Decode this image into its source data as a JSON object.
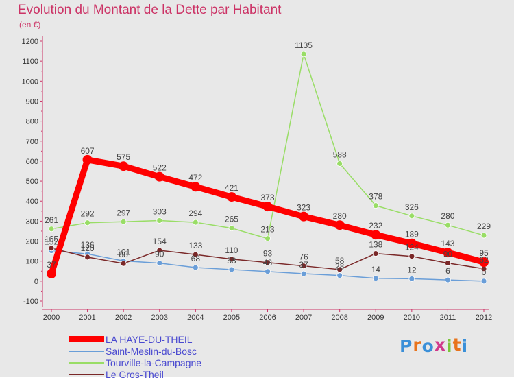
{
  "title": "Evolution du Montant de la Dette par Habitant",
  "subtitle": "(en €)",
  "logo": {
    "letters": [
      "P",
      "r",
      "o",
      "x",
      "i",
      "t",
      "i"
    ],
    "colors": [
      "#3a8fd8",
      "#e8731c",
      "#3a8fd8",
      "#d03a8c",
      "#7cc43a",
      "#e8731c",
      "#3a8fd8"
    ]
  },
  "chart_data": {
    "type": "line",
    "title": "Evolution du Montant de la Dette par Habitant",
    "ylabel": "(en €)",
    "xlabel": "",
    "x": [
      "2000",
      "2001",
      "2002",
      "2003",
      "2004",
      "2005",
      "2006",
      "2007",
      "2008",
      "2009",
      "2010",
      "2011",
      "2012"
    ],
    "ylim": [
      -100,
      1200
    ],
    "yticks": [
      "-100",
      "0",
      "100",
      "200",
      "300",
      "400",
      "500",
      "600",
      "700",
      "800",
      "900",
      "1000",
      "1100",
      "1200"
    ],
    "legend": "bottom-left",
    "grid": false,
    "series": [
      {
        "name": "LA HAYE-DU-THEIL",
        "color": "#ff0000",
        "values": [
          37,
          607,
          575,
          522,
          472,
          421,
          373,
          323,
          280,
          232,
          189,
          143,
          95
        ],
        "labels": [
          "37",
          "607",
          "575",
          "522",
          "472",
          "421",
          "373",
          "323",
          "280",
          "232",
          "189",
          "143",
          "95"
        ]
      },
      {
        "name": "Saint-Meslin-du-Bosc",
        "color": "#6a9ed8",
        "values": [
          152,
          136,
          101,
          90,
          68,
          58,
          48,
          37,
          28,
          14,
          12,
          6,
          0
        ],
        "labels": [
          "152",
          "136",
          "101",
          "90",
          "68",
          "58",
          "48",
          "37",
          "28",
          "14",
          "12",
          "6",
          "0"
        ]
      },
      {
        "name": "Tourville-la-Campagne",
        "color": "#99dd66",
        "values": [
          261,
          292,
          297,
          303,
          294,
          265,
          213,
          1135,
          588,
          378,
          326,
          280,
          229
        ],
        "labels": [
          "261",
          "292",
          "297",
          "303",
          "294",
          "265",
          "213",
          "1135",
          "588",
          "378",
          "326",
          "280",
          "229"
        ]
      },
      {
        "name": "Le Gros-Theil",
        "color": "#7a2828",
        "values": [
          165,
          120,
          88,
          154,
          133,
          110,
          93,
          76,
          58,
          138,
          124,
          90,
          62
        ],
        "labels": [
          "165",
          "120",
          "88",
          "154",
          "133",
          "110",
          "93",
          "76",
          "58",
          "138",
          "124",
          "90",
          "62"
        ]
      }
    ]
  }
}
